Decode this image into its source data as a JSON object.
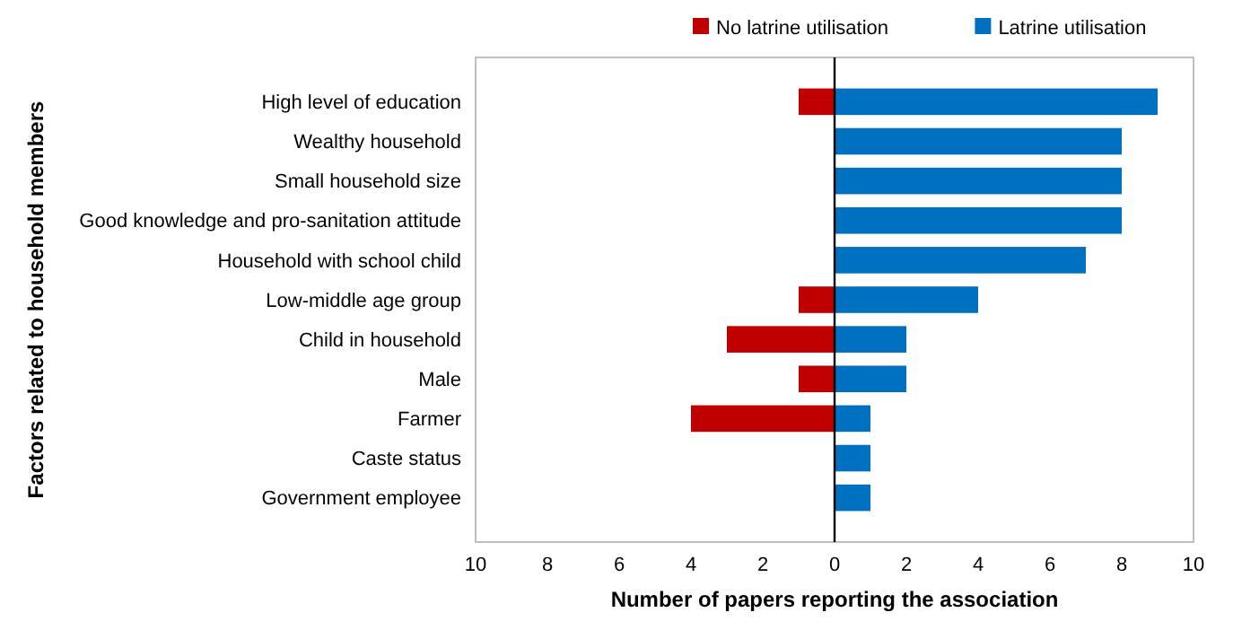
{
  "chart_data": {
    "type": "bar",
    "orientation": "horizontal",
    "xlabel": "Number of papers reporting the association",
    "ylabel": "Factors related to household members",
    "categories": [
      "High level of education",
      "Wealthy household",
      "Small household size",
      "Good knowledge and pro-sanitation attitude",
      "Household with school child",
      "Low-middle age group",
      "Child in household",
      "Male",
      "Farmer",
      "Caste status",
      "Government employee"
    ],
    "series": [
      {
        "name": "No latrine utilisation",
        "color": "#c00000",
        "values": [
          -1,
          null,
          null,
          null,
          null,
          -1,
          -3,
          -1,
          -4,
          null,
          null
        ]
      },
      {
        "name": "Latrine utilisation",
        "color": "#0070c0",
        "values": [
          9,
          8,
          8,
          8,
          7,
          4,
          2,
          2,
          1,
          1,
          1
        ]
      }
    ],
    "xlim": [
      -10,
      10
    ],
    "xticks": [
      {
        "value": -10,
        "label": "10"
      },
      {
        "value": -8,
        "label": "8"
      },
      {
        "value": -6,
        "label": "6"
      },
      {
        "value": -4,
        "label": "4"
      },
      {
        "value": -2,
        "label": "2"
      },
      0,
      2,
      4,
      6,
      8,
      10
    ],
    "legend": "top"
  }
}
